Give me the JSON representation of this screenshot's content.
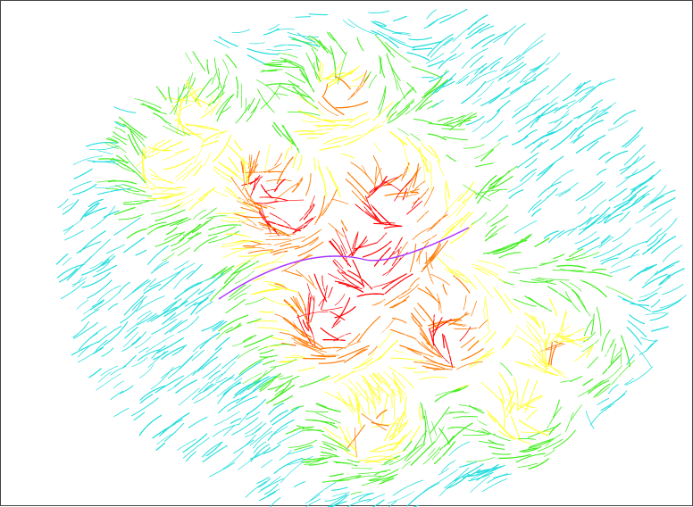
{
  "image": {
    "kind": "streamline field visualization",
    "background_color": "#ffffff",
    "border_color": "#444444",
    "palette": [
      "#ff0000",
      "#ff7a00",
      "#ffff33",
      "#44ee22",
      "#22dddd",
      "#aa33ff"
    ]
  }
}
